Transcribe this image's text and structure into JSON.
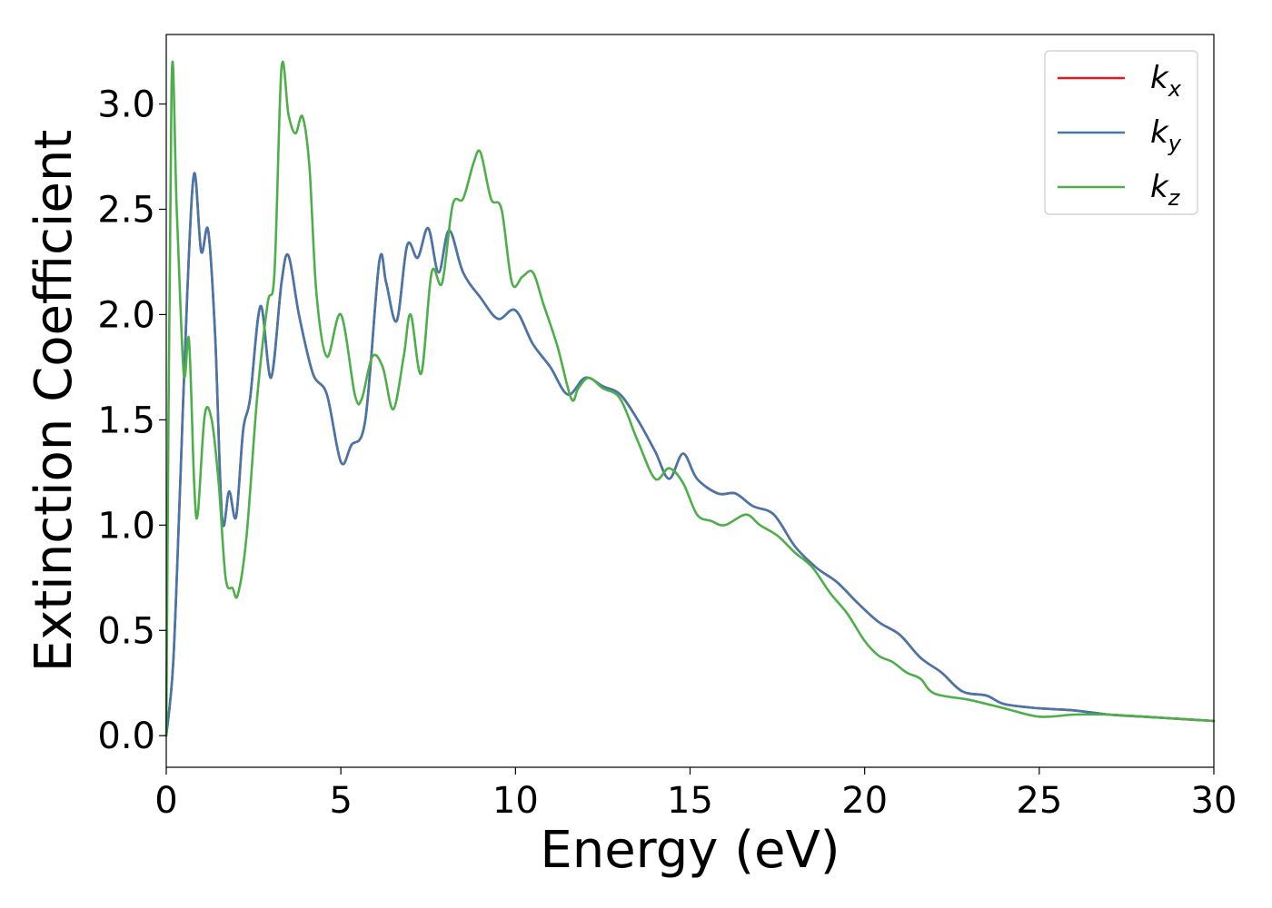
{
  "chart_data": {
    "type": "line",
    "title": "",
    "xlabel": "Energy (eV)",
    "ylabel": "Extinction Coefficient",
    "xlim": [
      0,
      30
    ],
    "ylim": [
      -0.15,
      3.33
    ],
    "xticks": [
      0,
      5,
      10,
      15,
      20,
      25,
      30
    ],
    "yticks": [
      0.0,
      0.5,
      1.0,
      1.5,
      2.0,
      2.5,
      3.0
    ],
    "xtick_labels": [
      "0",
      "5",
      "10",
      "15",
      "20",
      "25",
      "30"
    ],
    "ytick_labels": [
      "0.0",
      "0.5",
      "1.0",
      "1.5",
      "2.0",
      "2.5",
      "3.0"
    ],
    "grid": false,
    "legend_position": "top-right",
    "series": [
      {
        "name": "k_x",
        "legend_base": "k",
        "legend_sub": "x",
        "color": "#e41a1c",
        "x": [
          0,
          0.2,
          0.4,
          0.6,
          0.8,
          1.0,
          1.2,
          1.4,
          1.6,
          1.8,
          2.0,
          2.2,
          2.4,
          2.7,
          3.0,
          3.3,
          3.5,
          3.8,
          4.2,
          4.6,
          5.0,
          5.3,
          5.7,
          6.1,
          6.3,
          6.6,
          6.9,
          7.2,
          7.5,
          7.8,
          8.1,
          8.5,
          9.0,
          9.5,
          10.0,
          10.5,
          11.0,
          11.5,
          12.0,
          12.5,
          13.0,
          13.5,
          14.0,
          14.4,
          14.8,
          15.2,
          15.8,
          16.3,
          16.8,
          17.4,
          18.0,
          18.6,
          19.2,
          19.8,
          20.4,
          21.0,
          21.6,
          22.2,
          22.8,
          23.5,
          24.0,
          25.0,
          26.0,
          27.0,
          28.0,
          29.0,
          30.0
        ],
        "y": [
          0.0,
          0.35,
          1.2,
          2.1,
          2.67,
          2.3,
          2.4,
          1.9,
          1.03,
          1.16,
          1.04,
          1.45,
          1.6,
          2.04,
          1.7,
          2.15,
          2.28,
          2.0,
          1.72,
          1.62,
          1.3,
          1.38,
          1.5,
          2.25,
          2.15,
          1.97,
          2.33,
          2.27,
          2.41,
          2.2,
          2.4,
          2.2,
          2.08,
          1.98,
          2.02,
          1.86,
          1.75,
          1.62,
          1.7,
          1.66,
          1.62,
          1.5,
          1.35,
          1.22,
          1.34,
          1.22,
          1.15,
          1.15,
          1.09,
          1.05,
          0.9,
          0.8,
          0.73,
          0.63,
          0.54,
          0.48,
          0.37,
          0.3,
          0.21,
          0.19,
          0.15,
          0.13,
          0.12,
          0.1,
          0.09,
          0.08,
          0.07
        ]
      },
      {
        "name": "k_y",
        "legend_base": "k",
        "legend_sub": "y",
        "color": "#4477aa",
        "x": [
          0,
          0.2,
          0.4,
          0.6,
          0.8,
          1.0,
          1.2,
          1.4,
          1.6,
          1.8,
          2.0,
          2.2,
          2.4,
          2.7,
          3.0,
          3.3,
          3.5,
          3.8,
          4.2,
          4.6,
          5.0,
          5.3,
          5.7,
          6.1,
          6.3,
          6.6,
          6.9,
          7.2,
          7.5,
          7.8,
          8.1,
          8.5,
          9.0,
          9.5,
          10.0,
          10.5,
          11.0,
          11.5,
          12.0,
          12.5,
          13.0,
          13.5,
          14.0,
          14.4,
          14.8,
          15.2,
          15.8,
          16.3,
          16.8,
          17.4,
          18.0,
          18.6,
          19.2,
          19.8,
          20.4,
          21.0,
          21.6,
          22.2,
          22.8,
          23.5,
          24.0,
          25.0,
          26.0,
          27.0,
          28.0,
          29.0,
          30.0
        ],
        "y": [
          0.0,
          0.35,
          1.2,
          2.1,
          2.67,
          2.3,
          2.4,
          1.9,
          1.03,
          1.16,
          1.04,
          1.45,
          1.6,
          2.04,
          1.7,
          2.15,
          2.28,
          2.0,
          1.72,
          1.62,
          1.3,
          1.38,
          1.5,
          2.25,
          2.15,
          1.97,
          2.33,
          2.27,
          2.41,
          2.2,
          2.4,
          2.2,
          2.08,
          1.98,
          2.02,
          1.86,
          1.75,
          1.62,
          1.7,
          1.66,
          1.62,
          1.5,
          1.35,
          1.22,
          1.34,
          1.22,
          1.15,
          1.15,
          1.09,
          1.05,
          0.9,
          0.8,
          0.73,
          0.63,
          0.54,
          0.48,
          0.37,
          0.3,
          0.21,
          0.19,
          0.15,
          0.13,
          0.12,
          0.1,
          0.09,
          0.08,
          0.07
        ]
      },
      {
        "name": "k_z",
        "legend_base": "k",
        "legend_sub": "z",
        "color": "#4daf4a",
        "x": [
          0,
          0.15,
          0.3,
          0.5,
          0.65,
          0.8,
          0.9,
          1.1,
          1.3,
          1.5,
          1.7,
          1.9,
          2.05,
          2.3,
          2.6,
          2.9,
          3.1,
          3.3,
          3.5,
          3.7,
          3.9,
          4.1,
          4.3,
          4.6,
          5.0,
          5.4,
          5.6,
          5.9,
          6.2,
          6.5,
          6.8,
          7.0,
          7.3,
          7.6,
          7.9,
          8.2,
          8.5,
          8.8,
          9.0,
          9.3,
          9.6,
          9.9,
          10.2,
          10.5,
          10.8,
          11.2,
          11.6,
          11.8,
          12.1,
          12.5,
          13.0,
          13.5,
          14.0,
          14.4,
          14.8,
          15.2,
          15.6,
          16.0,
          16.6,
          17.0,
          17.5,
          18.0,
          18.5,
          19.0,
          19.5,
          20.0,
          20.4,
          20.8,
          21.2,
          21.6,
          22.0,
          23.0,
          24.0,
          25.0,
          26.0,
          27.0,
          28.0,
          29.0,
          30.0
        ],
        "y": [
          0.0,
          3.08,
          2.5,
          1.72,
          1.88,
          1.2,
          1.05,
          1.52,
          1.5,
          1.2,
          0.75,
          0.7,
          0.67,
          0.95,
          1.6,
          2.05,
          2.2,
          3.17,
          2.95,
          2.86,
          2.94,
          2.7,
          2.1,
          1.8,
          2.0,
          1.62,
          1.6,
          1.8,
          1.75,
          1.55,
          1.8,
          2.0,
          1.72,
          2.2,
          2.15,
          2.52,
          2.55,
          2.72,
          2.77,
          2.55,
          2.5,
          2.15,
          2.18,
          2.2,
          2.05,
          1.85,
          1.6,
          1.65,
          1.7,
          1.65,
          1.6,
          1.4,
          1.22,
          1.27,
          1.2,
          1.05,
          1.02,
          1.0,
          1.05,
          1.0,
          0.95,
          0.87,
          0.8,
          0.68,
          0.58,
          0.45,
          0.38,
          0.35,
          0.3,
          0.27,
          0.2,
          0.17,
          0.13,
          0.09,
          0.1,
          0.1,
          0.09,
          0.08,
          0.07
        ]
      }
    ]
  }
}
